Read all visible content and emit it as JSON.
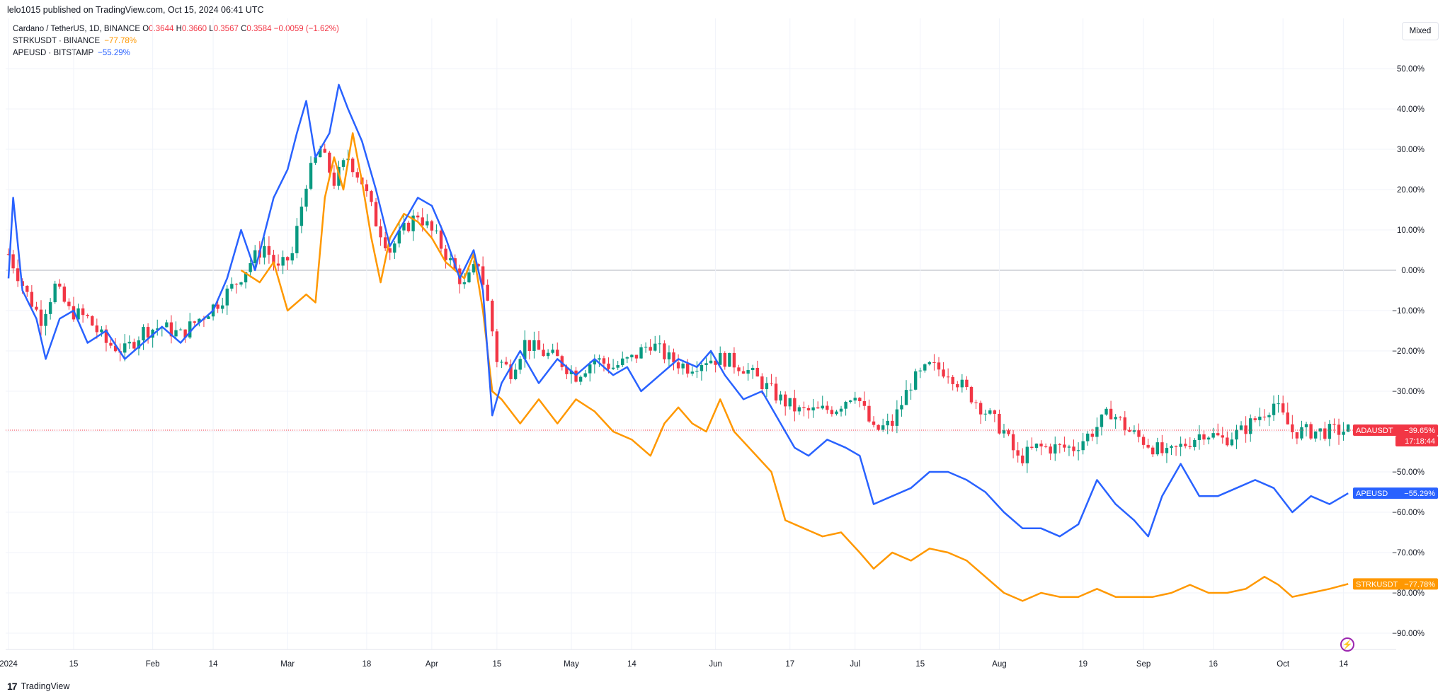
{
  "header": {
    "published": "lelo1015 published on TradingView.com, Oct 15, 2024 06:41 UTC"
  },
  "legend": {
    "main": {
      "name": "Cardano / TetherUS, 1D, BINANCE",
      "o_label": "O",
      "o": "0.3644",
      "h_label": "H",
      "h": "0.3660",
      "l_label": "L",
      "l": "0.3567",
      "c_label": "C",
      "c": "0.3584",
      "change": "−0.0059 (−1.62%)"
    },
    "s1": {
      "name": "STRKUSDT · BINANCE",
      "value": "−77.78%"
    },
    "s2": {
      "name": "APEUSD · BITSTAMP",
      "value": "−55.29%"
    }
  },
  "controls": {
    "scale_mode": "Mixed"
  },
  "footer": {
    "brand": "TradingView",
    "logo": "17"
  },
  "colors": {
    "up": "#089981",
    "down": "#f23645",
    "strk": "#ff9800",
    "ape": "#2962ff",
    "grid": "#f0f3fa"
  },
  "chart_data": {
    "type": "line",
    "scale": "percent",
    "ylim": [
      -95,
      55
    ],
    "y_ticks": [
      50,
      40,
      30,
      20,
      10,
      0,
      -10,
      -20,
      -30,
      -40,
      -50,
      -60,
      -70,
      -80,
      -90
    ],
    "y_tick_labels": [
      "50.00%",
      "40.00%",
      "30.00%",
      "20.00%",
      "10.00%",
      "0.00%",
      "−10.00%",
      "−20.00%",
      "−30.00%",
      "−40.00%",
      "−50.00%",
      "−60.00%",
      "−70.00%",
      "−80.00%",
      "−90.00%"
    ],
    "x_range": [
      "2024-01-01",
      "2024-10-21"
    ],
    "x_ticks": [
      {
        "date": "2024-01-01",
        "label": "2024"
      },
      {
        "date": "2024-01-15",
        "label": "15"
      },
      {
        "date": "2024-02-01",
        "label": "Feb"
      },
      {
        "date": "2024-02-14",
        "label": "14"
      },
      {
        "date": "2024-03-01",
        "label": "Mar"
      },
      {
        "date": "2024-03-18",
        "label": "18"
      },
      {
        "date": "2024-04-01",
        "label": "Apr"
      },
      {
        "date": "2024-04-15",
        "label": "15"
      },
      {
        "date": "2024-05-01",
        "label": "May"
      },
      {
        "date": "2024-05-14",
        "label": "14"
      },
      {
        "date": "2024-06-01",
        "label": "Jun"
      },
      {
        "date": "2024-06-17",
        "label": "17"
      },
      {
        "date": "2024-07-01",
        "label": "Jul"
      },
      {
        "date": "2024-07-15",
        "label": "15"
      },
      {
        "date": "2024-08-01",
        "label": "Aug"
      },
      {
        "date": "2024-08-19",
        "label": "19"
      },
      {
        "date": "2024-09-01",
        "label": "Sep"
      },
      {
        "date": "2024-09-16",
        "label": "16"
      },
      {
        "date": "2024-10-01",
        "label": "Oct"
      },
      {
        "date": "2024-10-14",
        "label": "14"
      }
    ],
    "series": [
      {
        "name": "ADAUSDT",
        "type": "candlestick",
        "label": "ADAUSDT",
        "value_label": "−39.65%",
        "countdown": "17:18:44",
        "last": -39.65,
        "points": [
          [
            "2024-01-01",
            4
          ],
          [
            "2024-01-05",
            -6
          ],
          [
            "2024-01-08",
            -12
          ],
          [
            "2024-01-11",
            -4
          ],
          [
            "2024-01-14",
            -10
          ],
          [
            "2024-01-18",
            -12
          ],
          [
            "2024-01-22",
            -18
          ],
          [
            "2024-01-26",
            -20
          ],
          [
            "2024-01-30",
            -15
          ],
          [
            "2024-02-03",
            -14
          ],
          [
            "2024-02-07",
            -16
          ],
          [
            "2024-02-11",
            -12
          ],
          [
            "2024-02-15",
            -8
          ],
          [
            "2024-02-19",
            -3
          ],
          [
            "2024-02-22",
            2
          ],
          [
            "2024-02-25",
            6
          ],
          [
            "2024-02-28",
            0
          ],
          [
            "2024-03-02",
            4
          ],
          [
            "2024-03-05",
            22
          ],
          [
            "2024-03-08",
            30
          ],
          [
            "2024-03-11",
            22
          ],
          [
            "2024-03-14",
            28
          ],
          [
            "2024-03-17",
            22
          ],
          [
            "2024-03-20",
            12
          ],
          [
            "2024-03-23",
            5
          ],
          [
            "2024-03-26",
            10
          ],
          [
            "2024-03-29",
            14
          ],
          [
            "2024-04-02",
            8
          ],
          [
            "2024-04-05",
            2
          ],
          [
            "2024-04-08",
            -4
          ],
          [
            "2024-04-11",
            2
          ],
          [
            "2024-04-13",
            -8
          ],
          [
            "2024-04-15",
            -22
          ],
          [
            "2024-04-18",
            -25
          ],
          [
            "2024-04-21",
            -18
          ],
          [
            "2024-04-24",
            -20
          ],
          [
            "2024-04-28",
            -22
          ],
          [
            "2024-05-02",
            -26
          ],
          [
            "2024-05-06",
            -22
          ],
          [
            "2024-05-10",
            -24
          ],
          [
            "2024-05-14",
            -22
          ],
          [
            "2024-05-18",
            -18
          ],
          [
            "2024-05-22",
            -22
          ],
          [
            "2024-05-26",
            -24
          ],
          [
            "2024-05-30",
            -22
          ],
          [
            "2024-06-03",
            -22
          ],
          [
            "2024-06-07",
            -24
          ],
          [
            "2024-06-11",
            -28
          ],
          [
            "2024-06-15",
            -32
          ],
          [
            "2024-06-19",
            -35
          ],
          [
            "2024-06-23",
            -35
          ],
          [
            "2024-06-27",
            -34
          ],
          [
            "2024-07-01",
            -30
          ],
          [
            "2024-07-05",
            -40
          ],
          [
            "2024-07-09",
            -38
          ],
          [
            "2024-07-13",
            -28
          ],
          [
            "2024-07-17",
            -24
          ],
          [
            "2024-07-21",
            -25
          ],
          [
            "2024-07-25",
            -30
          ],
          [
            "2024-07-29",
            -35
          ],
          [
            "2024-08-02",
            -40
          ],
          [
            "2024-08-05",
            -47
          ],
          [
            "2024-08-09",
            -44
          ],
          [
            "2024-08-13",
            -44
          ],
          [
            "2024-08-17",
            -44
          ],
          [
            "2024-08-21",
            -40
          ],
          [
            "2024-08-25",
            -35
          ],
          [
            "2024-08-29",
            -40
          ],
          [
            "2024-09-02",
            -43
          ],
          [
            "2024-09-06",
            -46
          ],
          [
            "2024-09-10",
            -43
          ],
          [
            "2024-09-14",
            -40
          ],
          [
            "2024-09-18",
            -42
          ],
          [
            "2024-09-22",
            -40
          ],
          [
            "2024-09-26",
            -36
          ],
          [
            "2024-09-29",
            -33
          ],
          [
            "2024-10-03",
            -40
          ],
          [
            "2024-10-07",
            -40
          ],
          [
            "2024-10-11",
            -40
          ],
          [
            "2024-10-15",
            -39.65
          ]
        ]
      },
      {
        "name": "STRKUSDT",
        "label": "STRKUSDT",
        "value_label": "−77.78%",
        "last": -77.78,
        "points": [
          [
            "2024-02-20",
            0
          ],
          [
            "2024-02-24",
            -3
          ],
          [
            "2024-02-27",
            2
          ],
          [
            "2024-03-01",
            -10
          ],
          [
            "2024-03-05",
            -6
          ],
          [
            "2024-03-07",
            -8
          ],
          [
            "2024-03-09",
            18
          ],
          [
            "2024-03-11",
            28
          ],
          [
            "2024-03-13",
            20
          ],
          [
            "2024-03-15",
            34
          ],
          [
            "2024-03-17",
            22
          ],
          [
            "2024-03-19",
            8
          ],
          [
            "2024-03-21",
            -3
          ],
          [
            "2024-03-23",
            8
          ],
          [
            "2024-03-26",
            14
          ],
          [
            "2024-03-29",
            12
          ],
          [
            "2024-04-01",
            8
          ],
          [
            "2024-04-04",
            2
          ],
          [
            "2024-04-08",
            -2
          ],
          [
            "2024-04-10",
            4
          ],
          [
            "2024-04-12",
            -10
          ],
          [
            "2024-04-14",
            -30
          ],
          [
            "2024-04-16",
            -32
          ],
          [
            "2024-04-20",
            -38
          ],
          [
            "2024-04-24",
            -32
          ],
          [
            "2024-04-28",
            -38
          ],
          [
            "2024-05-02",
            -32
          ],
          [
            "2024-05-06",
            -35
          ],
          [
            "2024-05-10",
            -40
          ],
          [
            "2024-05-14",
            -42
          ],
          [
            "2024-05-18",
            -46
          ],
          [
            "2024-05-21",
            -38
          ],
          [
            "2024-05-24",
            -34
          ],
          [
            "2024-05-27",
            -38
          ],
          [
            "2024-05-30",
            -40
          ],
          [
            "2024-06-02",
            -32
          ],
          [
            "2024-06-05",
            -40
          ],
          [
            "2024-06-09",
            -45
          ],
          [
            "2024-06-13",
            -50
          ],
          [
            "2024-06-16",
            -62
          ],
          [
            "2024-06-20",
            -64
          ],
          [
            "2024-06-24",
            -66
          ],
          [
            "2024-06-28",
            -65
          ],
          [
            "2024-07-02",
            -70
          ],
          [
            "2024-07-05",
            -74
          ],
          [
            "2024-07-09",
            -70
          ],
          [
            "2024-07-13",
            -72
          ],
          [
            "2024-07-17",
            -69
          ],
          [
            "2024-07-21",
            -70
          ],
          [
            "2024-07-25",
            -72
          ],
          [
            "2024-07-29",
            -76
          ],
          [
            "2024-08-02",
            -80
          ],
          [
            "2024-08-06",
            -82
          ],
          [
            "2024-08-10",
            -80
          ],
          [
            "2024-08-14",
            -81
          ],
          [
            "2024-08-18",
            -81
          ],
          [
            "2024-08-22",
            -79
          ],
          [
            "2024-08-26",
            -81
          ],
          [
            "2024-08-30",
            -81
          ],
          [
            "2024-09-03",
            -81
          ],
          [
            "2024-09-07",
            -80
          ],
          [
            "2024-09-11",
            -78
          ],
          [
            "2024-09-15",
            -80
          ],
          [
            "2024-09-19",
            -80
          ],
          [
            "2024-09-23",
            -79
          ],
          [
            "2024-09-27",
            -76
          ],
          [
            "2024-09-30",
            -78
          ],
          [
            "2024-10-03",
            -81
          ],
          [
            "2024-10-07",
            -80
          ],
          [
            "2024-10-11",
            -79
          ],
          [
            "2024-10-15",
            -77.78
          ]
        ]
      },
      {
        "name": "APEUSD",
        "label": "APEUSD",
        "value_label": "−55.29%",
        "last": -55.29,
        "points": [
          [
            "2024-01-01",
            -2
          ],
          [
            "2024-01-02",
            18
          ],
          [
            "2024-01-04",
            -5
          ],
          [
            "2024-01-07",
            -12
          ],
          [
            "2024-01-09",
            -22
          ],
          [
            "2024-01-12",
            -12
          ],
          [
            "2024-01-15",
            -10
          ],
          [
            "2024-01-18",
            -18
          ],
          [
            "2024-01-22",
            -15
          ],
          [
            "2024-01-26",
            -22
          ],
          [
            "2024-01-30",
            -18
          ],
          [
            "2024-02-03",
            -14
          ],
          [
            "2024-02-07",
            -18
          ],
          [
            "2024-02-10",
            -14
          ],
          [
            "2024-02-14",
            -10
          ],
          [
            "2024-02-17",
            -2
          ],
          [
            "2024-02-20",
            10
          ],
          [
            "2024-02-23",
            0
          ],
          [
            "2024-02-27",
            18
          ],
          [
            "2024-03-01",
            25
          ],
          [
            "2024-03-03",
            34
          ],
          [
            "2024-03-05",
            42
          ],
          [
            "2024-03-07",
            28
          ],
          [
            "2024-03-10",
            34
          ],
          [
            "2024-03-12",
            46
          ],
          [
            "2024-03-14",
            40
          ],
          [
            "2024-03-17",
            32
          ],
          [
            "2024-03-20",
            20
          ],
          [
            "2024-03-23",
            6
          ],
          [
            "2024-03-26",
            12
          ],
          [
            "2024-03-29",
            18
          ],
          [
            "2024-04-01",
            16
          ],
          [
            "2024-04-04",
            8
          ],
          [
            "2024-04-07",
            -2
          ],
          [
            "2024-04-10",
            5
          ],
          [
            "2024-04-12",
            -5
          ],
          [
            "2024-04-14",
            -36
          ],
          [
            "2024-04-16",
            -28
          ],
          [
            "2024-04-20",
            -20
          ],
          [
            "2024-04-24",
            -28
          ],
          [
            "2024-04-28",
            -22
          ],
          [
            "2024-05-02",
            -26
          ],
          [
            "2024-05-06",
            -22
          ],
          [
            "2024-05-10",
            -26
          ],
          [
            "2024-05-13",
            -24
          ],
          [
            "2024-05-16",
            -30
          ],
          [
            "2024-05-20",
            -26
          ],
          [
            "2024-05-24",
            -22
          ],
          [
            "2024-05-28",
            -24
          ],
          [
            "2024-05-31",
            -20
          ],
          [
            "2024-06-03",
            -26
          ],
          [
            "2024-06-07",
            -32
          ],
          [
            "2024-06-11",
            -30
          ],
          [
            "2024-06-15",
            -38
          ],
          [
            "2024-06-18",
            -44
          ],
          [
            "2024-06-21",
            -46
          ],
          [
            "2024-06-25",
            -42
          ],
          [
            "2024-06-29",
            -44
          ],
          [
            "2024-07-02",
            -46
          ],
          [
            "2024-07-05",
            -58
          ],
          [
            "2024-07-09",
            -56
          ],
          [
            "2024-07-13",
            -54
          ],
          [
            "2024-07-17",
            -50
          ],
          [
            "2024-07-21",
            -50
          ],
          [
            "2024-07-25",
            -52
          ],
          [
            "2024-07-29",
            -55
          ],
          [
            "2024-08-02",
            -60
          ],
          [
            "2024-08-06",
            -64
          ],
          [
            "2024-08-10",
            -64
          ],
          [
            "2024-08-14",
            -66
          ],
          [
            "2024-08-18",
            -63
          ],
          [
            "2024-08-22",
            -52
          ],
          [
            "2024-08-26",
            -58
          ],
          [
            "2024-08-30",
            -62
          ],
          [
            "2024-09-02",
            -66
          ],
          [
            "2024-09-05",
            -56
          ],
          [
            "2024-09-09",
            -48
          ],
          [
            "2024-09-13",
            -56
          ],
          [
            "2024-09-17",
            -56
          ],
          [
            "2024-09-21",
            -54
          ],
          [
            "2024-09-25",
            -52
          ],
          [
            "2024-09-29",
            -54
          ],
          [
            "2024-10-03",
            -60
          ],
          [
            "2024-10-07",
            -56
          ],
          [
            "2024-10-11",
            -58
          ],
          [
            "2024-10-15",
            -55.29
          ]
        ]
      }
    ]
  }
}
